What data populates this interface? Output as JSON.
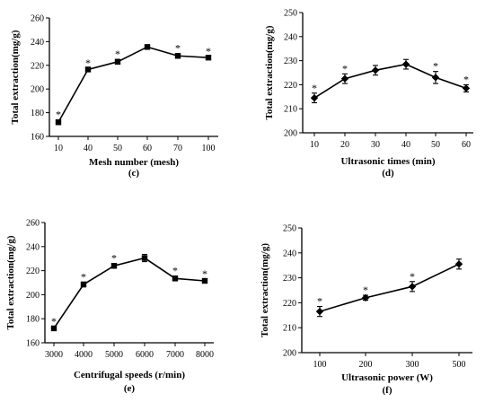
{
  "chart_data": [
    {
      "type": "line",
      "panel": "(c)",
      "xlabel": "Mesh number (mesh)",
      "ylabel": "Total extraction(mg/g)",
      "categories": [
        "10",
        "40",
        "50",
        "60",
        "70",
        "100"
      ],
      "values": [
        172,
        216.5,
        223,
        235.5,
        228,
        226.5
      ],
      "errors": [
        2,
        1,
        2,
        1,
        2,
        1
      ],
      "significant": [
        true,
        true,
        true,
        false,
        true,
        true
      ],
      "marker": "square",
      "ylim": [
        160,
        260
      ],
      "yticks": [
        "160",
        "180",
        "200",
        "220",
        "240",
        "260"
      ]
    },
    {
      "type": "line",
      "panel": "(d)",
      "xlabel": "Ultrasonic times (min)",
      "ylabel": "Total extraction(mg/g)",
      "categories": [
        "10",
        "20",
        "30",
        "40",
        "50",
        "60"
      ],
      "values": [
        214.5,
        222.5,
        226,
        228.5,
        223,
        218.5
      ],
      "errors": [
        2,
        2,
        2,
        2,
        2.5,
        1.5
      ],
      "significant": [
        true,
        true,
        false,
        false,
        true,
        true
      ],
      "marker": "diamond",
      "ylim": [
        200,
        250
      ],
      "yticks": [
        "200",
        "210",
        "220",
        "230",
        "240",
        "250"
      ]
    },
    {
      "type": "line",
      "panel": "(e)",
      "xlabel": "Centrifugal speeds (r/min)",
      "ylabel": "Total extraction(mg/g)",
      "categories": [
        "3000",
        "4000",
        "5000",
        "6000",
        "7000",
        "8000"
      ],
      "values": [
        172,
        208.5,
        224,
        230.5,
        213.5,
        211.5
      ],
      "errors": [
        1.5,
        2,
        2,
        3,
        2,
        1.5
      ],
      "significant": [
        true,
        true,
        true,
        false,
        true,
        true
      ],
      "marker": "square",
      "ylim": [
        160,
        260
      ],
      "yticks": [
        "160",
        "180",
        "200",
        "220",
        "240",
        "260"
      ]
    },
    {
      "type": "line",
      "panel": "(f)",
      "xlabel": "Ultrasonic power (W)",
      "ylabel": "Total extraction(mg/g)",
      "categories": [
        "100",
        "200",
        "300",
        "500"
      ],
      "values": [
        216.5,
        222,
        226.5,
        235.5
      ],
      "errors": [
        2,
        1,
        2,
        2
      ],
      "significant": [
        true,
        true,
        true,
        false
      ],
      "marker": "diamond",
      "ylim": [
        200,
        250
      ],
      "yticks": [
        "200",
        "210",
        "220",
        "230",
        "240",
        "250"
      ]
    }
  ],
  "annotation_symbol": "*"
}
